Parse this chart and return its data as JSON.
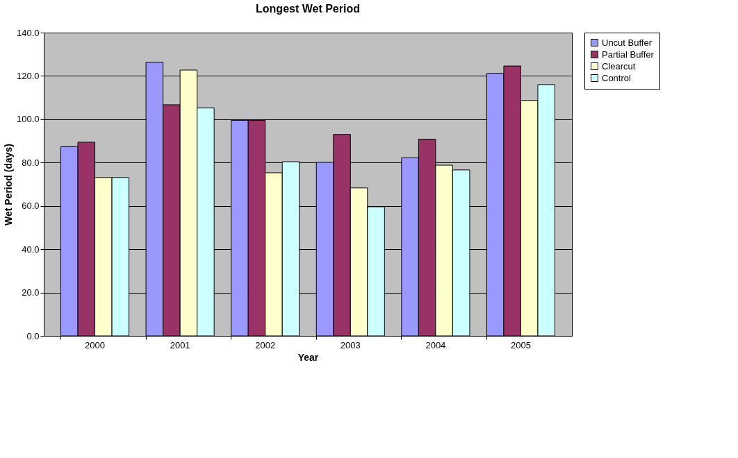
{
  "chart_data": {
    "type": "bar",
    "title": "Longest Wet Period",
    "xlabel": "Year",
    "ylabel": "Wet Period (days)",
    "categories": [
      "2000",
      "2001",
      "2002",
      "2003",
      "2004",
      "2005"
    ],
    "series": [
      {
        "name": "Uncut Buffer",
        "color": "#9999ff",
        "values": [
          87.3,
          126.3,
          99.5,
          80.1,
          82.2,
          121.2
        ]
      },
      {
        "name": "Partial Buffer",
        "color": "#993366",
        "values": [
          89.4,
          106.7,
          99.5,
          93.0,
          90.8,
          124.6
        ]
      },
      {
        "name": "Clearcut",
        "color": "#ffffcc",
        "values": [
          73.1,
          122.7,
          75.3,
          68.3,
          78.8,
          108.7
        ]
      },
      {
        "name": "Control",
        "color": "#ccffff",
        "values": [
          73.1,
          105.2,
          80.4,
          59.6,
          76.6,
          116.0
        ]
      }
    ],
    "ylim": [
      0,
      140
    ],
    "yticks": [
      {
        "value": 0,
        "label": "0.0"
      },
      {
        "value": 20,
        "label": "20.0"
      },
      {
        "value": 40,
        "label": "40.0"
      },
      {
        "value": 60,
        "label": "60.0"
      },
      {
        "value": 80,
        "label": "80.0"
      },
      {
        "value": 100,
        "label": "100.0"
      },
      {
        "value": 120,
        "label": "120.0"
      },
      {
        "value": 140,
        "label": "140.0"
      }
    ],
    "grid": "y",
    "legend": "right"
  }
}
